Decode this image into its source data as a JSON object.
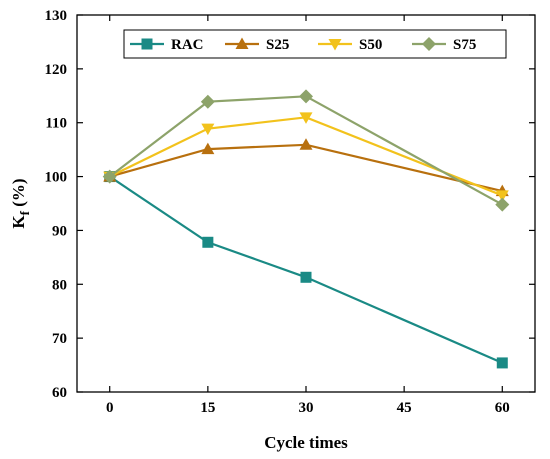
{
  "chart_data": {
    "type": "line",
    "title": "",
    "xlabel": "Cycle times",
    "ylabel_main": "K",
    "ylabel_sub": "f",
    "ylabel_unit": " (%)",
    "x": [
      0,
      15,
      30,
      60
    ],
    "xlim": [
      -5,
      65
    ],
    "ylim": [
      60,
      130
    ],
    "xticks": [
      0,
      15,
      30,
      45,
      60
    ],
    "yticks": [
      60,
      70,
      80,
      90,
      100,
      110,
      120,
      130
    ],
    "grid": false,
    "legend_position": "top",
    "series": [
      {
        "name": "RAC",
        "marker": "square",
        "color": "#1a8a85",
        "values": [
          100,
          87.8,
          81.3,
          65.4
        ]
      },
      {
        "name": "S25",
        "marker": "triangle-up",
        "color": "#b8700e",
        "values": [
          100,
          105.1,
          105.9,
          97.3
        ]
      },
      {
        "name": "S50",
        "marker": "triangle-down",
        "color": "#f2c21c",
        "values": [
          100,
          108.9,
          111.0,
          96.5
        ]
      },
      {
        "name": "S75",
        "marker": "diamond",
        "color": "#8da36a",
        "values": [
          100,
          113.9,
          114.9,
          94.8
        ]
      }
    ]
  }
}
